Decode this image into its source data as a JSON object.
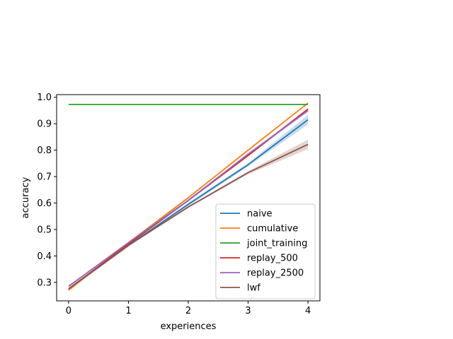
{
  "chart_data": {
    "type": "line",
    "title": "",
    "xlabel": "experiences",
    "ylabel": "accuracy",
    "x": [
      0,
      1,
      2,
      3,
      4
    ],
    "xlim": [
      -0.2,
      4.2
    ],
    "ylim": [
      0.23,
      1.01
    ],
    "xticks": [
      "0",
      "1",
      "2",
      "3",
      "4"
    ],
    "yticks": [
      "0.3",
      "0.4",
      "0.5",
      "0.6",
      "0.7",
      "0.8",
      "0.9",
      "1.0"
    ],
    "grid": false,
    "legend_position": "lower-right",
    "series": [
      {
        "name": "naive",
        "color": "#1f77b4",
        "values": [
          0.275,
          0.44,
          0.595,
          0.745,
          0.915
        ],
        "band": [
          0.005,
          0.006,
          0.006,
          0.006,
          0.018
        ]
      },
      {
        "name": "cumulative",
        "color": "#ff7f0e",
        "values": [
          0.27,
          0.45,
          0.62,
          0.8,
          0.978
        ],
        "band": [
          0.003,
          0.003,
          0.003,
          0.003,
          0.003
        ]
      },
      {
        "name": "joint_training",
        "color": "#2ca02c",
        "values": [
          0.973,
          0.973,
          0.973,
          0.973,
          0.973
        ],
        "band": [
          0,
          0,
          0,
          0,
          0
        ]
      },
      {
        "name": "replay_500",
        "color": "#d62728",
        "values": [
          0.275,
          0.445,
          0.61,
          0.78,
          0.955
        ],
        "band": [
          0.004,
          0.004,
          0.004,
          0.004,
          0.006
        ]
      },
      {
        "name": "replay_2500",
        "color": "#9467bd",
        "values": [
          0.285,
          0.45,
          0.61,
          0.785,
          0.95
        ],
        "band": [
          0.004,
          0.004,
          0.004,
          0.004,
          0.006
        ]
      },
      {
        "name": "lwf",
        "color": "#8c564b",
        "values": [
          0.275,
          0.44,
          0.585,
          0.715,
          0.822
        ],
        "band": [
          0.004,
          0.004,
          0.004,
          0.006,
          0.018
        ]
      }
    ]
  }
}
